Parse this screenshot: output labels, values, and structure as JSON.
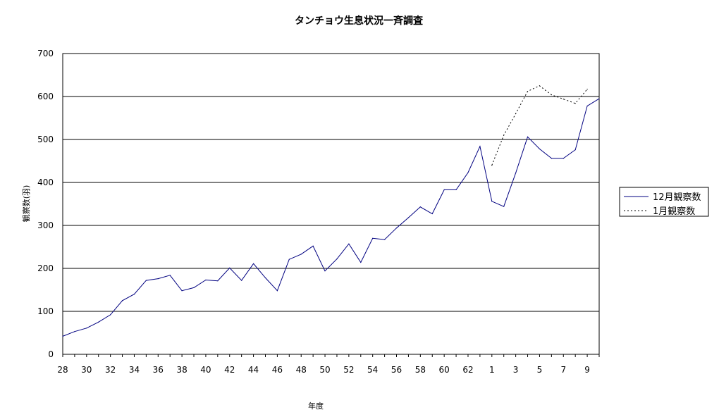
{
  "chart_data": {
    "type": "line",
    "title": "タンチョウ生息状況一斉調査",
    "xlabel": "年度",
    "ylabel": "観察数(羽)",
    "ylim": [
      0,
      700
    ],
    "yticks": [
      "0",
      "100",
      "200",
      "300",
      "400",
      "500",
      "600",
      "700"
    ],
    "grid": true,
    "legend_position": "right",
    "x": [
      "28",
      "29",
      "30",
      "31",
      "32",
      "33",
      "34",
      "35",
      "36",
      "37",
      "38",
      "39",
      "40",
      "41",
      "42",
      "43",
      "44",
      "45",
      "46",
      "47",
      "48",
      "49",
      "50",
      "51",
      "52",
      "53",
      "54",
      "55",
      "56",
      "57",
      "58",
      "59",
      "60",
      "61",
      "62",
      "63",
      "1",
      "2",
      "3",
      "4",
      "5",
      "6",
      "7",
      "8",
      "9",
      "10"
    ],
    "xticks": [
      "28",
      "30",
      "32",
      "34",
      "36",
      "38",
      "40",
      "42",
      "44",
      "46",
      "48",
      "50",
      "52",
      "54",
      "56",
      "58",
      "60",
      "62",
      "1",
      "3",
      "5",
      "7",
      "9"
    ],
    "series": [
      {
        "name": "12月観察数",
        "color": "#000080",
        "dash": "solid",
        "values": [
          42,
          53,
          61,
          75,
          92,
          125,
          140,
          172,
          176,
          184,
          148,
          155,
          173,
          171,
          201,
          172,
          211,
          178,
          148,
          221,
          233,
          252,
          194,
          222,
          257,
          214,
          270,
          267,
          294,
          318,
          343,
          327,
          383,
          383,
          423,
          484,
          356,
          344,
          422,
          506,
          478,
          456,
          456,
          476,
          578,
          595
        ]
      },
      {
        "name": "1月観察数",
        "color": "#000000",
        "dash": "dotted",
        "values": [
          null,
          null,
          null,
          null,
          null,
          null,
          null,
          null,
          null,
          null,
          null,
          null,
          null,
          null,
          null,
          null,
          null,
          null,
          null,
          null,
          null,
          null,
          null,
          null,
          null,
          null,
          null,
          null,
          null,
          null,
          null,
          null,
          null,
          null,
          null,
          null,
          440,
          510,
          560,
          612,
          625,
          604,
          594,
          584,
          617,
          null
        ]
      }
    ]
  }
}
